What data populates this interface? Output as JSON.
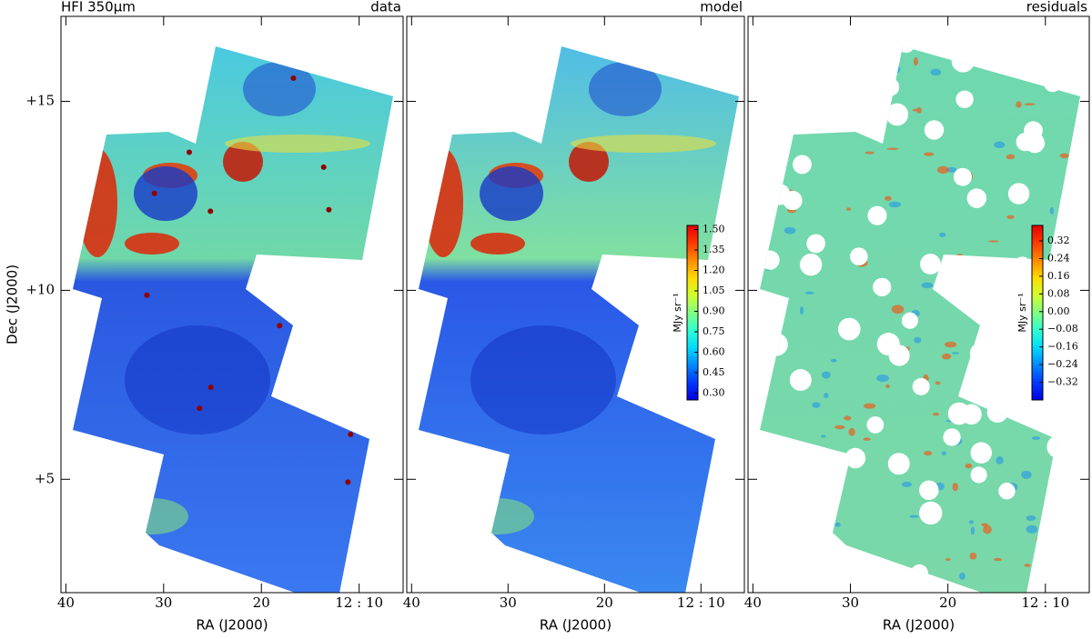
{
  "chart_data": [
    {
      "type": "map",
      "title": "HFI 350μm",
      "label": "data",
      "xlabel": "RA (J2000)",
      "ylabel": "Dec (J2000)",
      "xlim": [
        40.5,
        5.5
      ],
      "xticks": [
        40,
        30,
        20,
        {
          "value": 10,
          "label": "12 : 10"
        }
      ],
      "ylim": [
        2,
        17.25
      ],
      "yticks": [
        {
          "value": 15,
          "label": "+15"
        },
        {
          "value": 10,
          "label": "+10"
        },
        {
          "value": 5,
          "label": "+5"
        }
      ],
      "colormap": "jet"
    },
    {
      "type": "map",
      "label": "model",
      "xlabel": "RA (J2000)",
      "xlim": [
        40.5,
        5.5
      ],
      "xticks": [
        40,
        30,
        20,
        {
          "value": 10,
          "label": "12 : 10"
        }
      ],
      "colormap": "jet",
      "colorbar": {
        "label": "MJy sr⁻¹",
        "clim": [
          0.25,
          1.53
        ],
        "ticks": [
          {
            "value": 1.5,
            "label": "1.50"
          },
          1.35,
          {
            "value": 1.2,
            "label": "1.20"
          },
          1.05,
          {
            "value": 0.9,
            "label": "0.90"
          },
          0.75,
          {
            "value": 0.6,
            "label": "0.60"
          },
          0.45,
          {
            "value": 0.3,
            "label": "0.30"
          }
        ]
      }
    },
    {
      "type": "map",
      "label": "residuals",
      "xlabel": "RA (J2000)",
      "xlim": [
        40.5,
        5.5
      ],
      "xticks": [
        40,
        30,
        20,
        {
          "value": 10,
          "label": "12 : 10"
        }
      ],
      "colormap": "jet",
      "colorbar": {
        "label": "MJy sr⁻¹",
        "clim": [
          -0.4,
          0.39
        ],
        "ticks": [
          0.32,
          0.24,
          0.16,
          0.08,
          {
            "value": 0,
            "label": "0.00"
          },
          {
            "value": -0.08,
            "label": "−0.08"
          },
          {
            "value": -0.16,
            "label": "−0.16"
          },
          {
            "value": -0.24,
            "label": "−0.24"
          },
          {
            "value": -0.32,
            "label": "−0.32"
          }
        ]
      }
    }
  ]
}
